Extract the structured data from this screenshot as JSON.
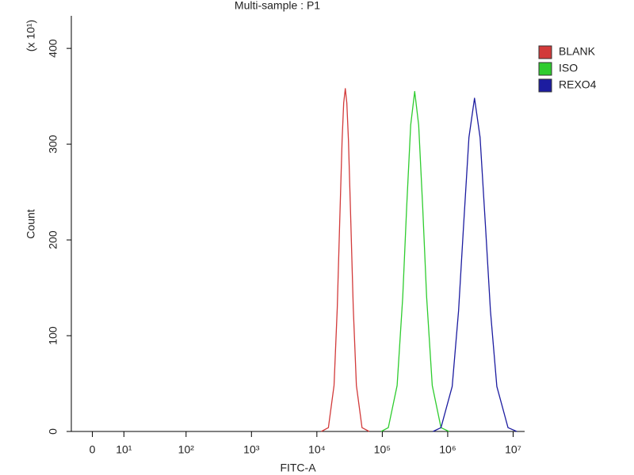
{
  "chart_data": {
    "type": "histogram-overlay",
    "title": "Multi-sample : P1",
    "x_label": "FITC-A",
    "y_label": "Count",
    "y_multiplier": "(x 10¹)",
    "xscale": "biexponential",
    "xlim": [
      -6,
      15000000
    ],
    "xticks": [
      0,
      {
        "value": 10,
        "label": "10¹"
      },
      {
        "value": 100,
        "label": "10²"
      },
      {
        "value": 1000,
        "label": "10³"
      },
      {
        "value": 10000,
        "label": "10⁴"
      },
      {
        "value": 100000,
        "label": "10⁵"
      },
      {
        "value": 1000000,
        "label": "10⁶"
      },
      {
        "value": 10000000,
        "label": "10⁷"
      }
    ],
    "ylim": [
      0,
      434
    ],
    "yticks": [
      0,
      100,
      200,
      300,
      400
    ],
    "legend": "right",
    "series": [
      {
        "name": "BLANK",
        "color": "#d23a3a",
        "x": [
          11700,
          15000,
          18300,
          20500,
          22300,
          24300,
          25700,
          27200,
          28700,
          30400,
          33100,
          36000,
          40200,
          49000,
          63100
        ],
        "values": [
          0,
          4,
          48,
          129,
          217,
          304,
          343,
          358,
          343,
          304,
          217,
          129,
          48,
          4,
          0
        ]
      },
      {
        "name": "ISO",
        "color": "#2ecc2e",
        "x": [
          96000,
          123700,
          168600,
          205300,
          236200,
          271800,
          312900,
          359900,
          414300,
          476600,
          580500,
          789600,
          1046000
        ],
        "values": [
          0,
          4,
          48,
          140,
          235,
          320,
          355,
          320,
          235,
          140,
          48,
          4,
          0
        ]
      },
      {
        "name": "REXO4",
        "color": "#1c1ca0",
        "x": [
          596800,
          789600,
          1171000,
          1466000,
          1735000,
          2111000,
          2570000,
          3127000,
          3806000,
          4503000,
          5639000,
          8355000,
          11380000
        ],
        "values": [
          0,
          4,
          47,
          126,
          211,
          307,
          348,
          307,
          211,
          126,
          47,
          4,
          0
        ]
      }
    ]
  }
}
